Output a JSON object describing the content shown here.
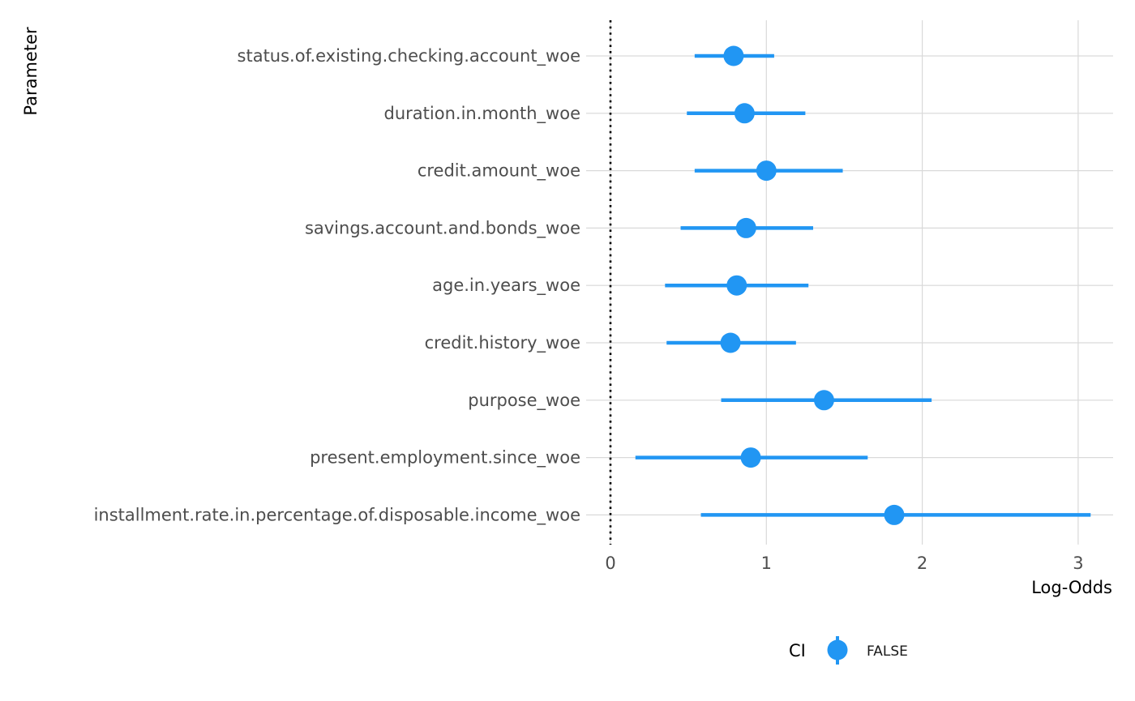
{
  "chart_data": {
    "type": "forest",
    "xlabel": "Log-Odds",
    "ylabel": "Parameter",
    "xlim": [
      -0.15,
      3.2
    ],
    "x_ticks": [
      0,
      1,
      2,
      3
    ],
    "reference_line": 0,
    "grid": true,
    "color": "#2196F3",
    "parameters": [
      "status.of.existing.checking.account_woe",
      "duration.in.month_woe",
      "credit.amount_woe",
      "savings.account.and.bonds_woe",
      "age.in.years_woe",
      "credit.history_woe",
      "purpose_woe",
      "present.employment.since_woe",
      "installment.rate.in.percentage.of.disposable.income_woe"
    ],
    "estimates": [
      0.79,
      0.86,
      1.0,
      0.87,
      0.81,
      0.77,
      1.37,
      0.9,
      1.82
    ],
    "ci_low": [
      0.54,
      0.49,
      0.54,
      0.45,
      0.35,
      0.36,
      0.71,
      0.16,
      0.58
    ],
    "ci_high": [
      1.05,
      1.25,
      1.49,
      1.3,
      1.27,
      1.19,
      2.06,
      1.65,
      3.08
    ],
    "legend": {
      "title": "CI",
      "position": "bottom",
      "entries": [
        "FALSE"
      ]
    }
  }
}
